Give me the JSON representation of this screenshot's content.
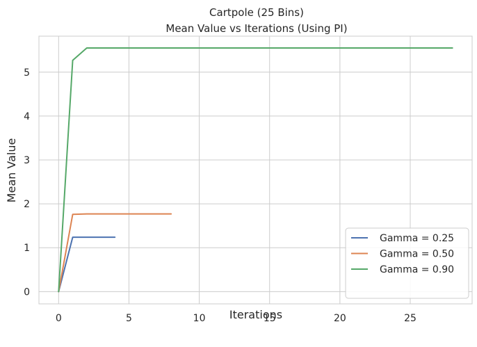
{
  "chart_data": {
    "type": "line",
    "title": [
      "Cartpole (25 Bins)",
      "Mean Value vs Iterations (Using PI)"
    ],
    "xlabel": "Iterations",
    "ylabel": "Mean Value",
    "xlim": [
      -1.4,
      29.4
    ],
    "ylim": [
      -0.28,
      5.82
    ],
    "xticks": [
      0,
      5,
      10,
      15,
      20,
      25
    ],
    "yticks": [
      0,
      1,
      2,
      3,
      4,
      5
    ],
    "grid": true,
    "legend_position": "lower-right",
    "series": [
      {
        "name": "Gamma = 0.25",
        "color": "#4c72b0",
        "x": [
          0,
          1,
          2,
          3,
          4
        ],
        "y": [
          0,
          1.24,
          1.24,
          1.24,
          1.24
        ]
      },
      {
        "name": "Gamma = 0.50",
        "color": "#dd8452",
        "x": [
          0,
          1,
          2,
          3,
          4,
          5,
          6,
          7,
          8
        ],
        "y": [
          0,
          1.76,
          1.77,
          1.77,
          1.77,
          1.77,
          1.77,
          1.77,
          1.77
        ]
      },
      {
        "name": "Gamma = 0.90",
        "color": "#55a868",
        "x": [
          0,
          1,
          2,
          3,
          4,
          5,
          6,
          7,
          8,
          9,
          10,
          11,
          12,
          13,
          14,
          15,
          16,
          17,
          18,
          19,
          20,
          21,
          22,
          23,
          24,
          25,
          26,
          27,
          28
        ],
        "y": [
          0,
          5.27,
          5.55,
          5.55,
          5.55,
          5.55,
          5.55,
          5.55,
          5.55,
          5.55,
          5.55,
          5.55,
          5.55,
          5.55,
          5.55,
          5.55,
          5.55,
          5.55,
          5.55,
          5.55,
          5.55,
          5.55,
          5.55,
          5.55,
          5.55,
          5.55,
          5.55,
          5.55,
          5.55
        ]
      }
    ]
  }
}
